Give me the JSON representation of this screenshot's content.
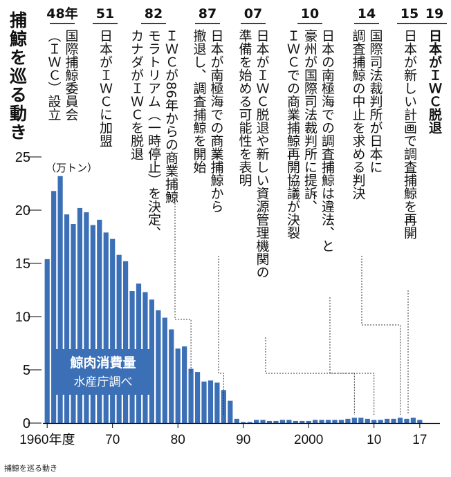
{
  "chart_data": {
    "type": "bar",
    "title": "捕鯨を巡る動き",
    "ylabel": "（万トン）",
    "ylim": [
      0,
      25
    ],
    "yticks": [
      "0",
      "5",
      "10",
      "15",
      "20",
      "25"
    ],
    "xticks": [
      {
        "year": 1960,
        "label": "1960年度"
      },
      {
        "year": 1970,
        "label": "70"
      },
      {
        "year": 1980,
        "label": "80"
      },
      {
        "year": 1990,
        "label": "90"
      },
      {
        "year": 2000,
        "label": "2000"
      },
      {
        "year": 2010,
        "label": "10"
      },
      {
        "year": 2017,
        "label": "17"
      }
    ],
    "legend_main": "鯨肉消費量",
    "legend_sub": "水産庁調べ",
    "accent_color": "#3b6fb6",
    "series": [
      {
        "x": [
          1960,
          1961,
          1962,
          1963,
          1964,
          1965,
          1966,
          1967,
          1968,
          1969,
          1970,
          1971,
          1972,
          1973,
          1974,
          1975,
          1976,
          1977,
          1978,
          1979,
          1980,
          1981,
          1982,
          1983,
          1984,
          1985,
          1986,
          1987,
          1988,
          1989,
          1990,
          1991,
          1992,
          1993,
          1994,
          1995,
          1996,
          1997,
          1998,
          1999,
          2000,
          2001,
          2002,
          2003,
          2004,
          2005,
          2006,
          2007,
          2008,
          2009,
          2010,
          2011,
          2012,
          2013,
          2014,
          2015,
          2016,
          2017
        ],
        "values": [
          15.4,
          21.8,
          23.2,
          19.6,
          18.7,
          20.2,
          19.8,
          18.6,
          19.1,
          17.9,
          17.3,
          15.8,
          15.2,
          12.4,
          13.1,
          12.3,
          11.6,
          10.6,
          9.9,
          8.8,
          7.0,
          7.2,
          5.1,
          4.8,
          3.9,
          4.0,
          3.8,
          3.1,
          2.1,
          0.4,
          0.1,
          0.1,
          0.3,
          0.3,
          0.2,
          0.2,
          0.3,
          0.3,
          0.2,
          0.2,
          0.2,
          0.3,
          0.3,
          0.3,
          0.3,
          0.3,
          0.4,
          0.5,
          0.5,
          0.4,
          0.3,
          0.3,
          0.4,
          0.4,
          0.5,
          0.4,
          0.5,
          0.3
        ]
      }
    ],
    "events": [
      {
        "year": "48年",
        "text": "国際捕鯨委員会（ＩＷＣ）設立"
      },
      {
        "year": "51",
        "text": "日本がＩＷＣに加盟"
      },
      {
        "year": "82",
        "text": "ＩＷＣが86年からの商業捕鯨モラトリアム（一時停止）を決定、カナダがＩＷＣを脱退"
      },
      {
        "year": "87",
        "text": "日本が南極海での商業捕鯨から撤退し、調査捕鯨を開始"
      },
      {
        "year": "07",
        "text": "日本がＩＷＣ脱退や新しい資源管理機関の準備を始める可能性を表明"
      },
      {
        "year": "10",
        "text": "日本の南極海での調査捕鯨は違法、と豪州が国際司法裁判所に提訴、ＩＷＣでの商業捕鯨再開協議が決裂"
      },
      {
        "year": "14",
        "text": "国際司法裁判所が日本に調査捕鯨の中止を求める判決"
      },
      {
        "year": "15",
        "text": "日本が新しい計画で調査捕鯨を再開"
      },
      {
        "year": "19",
        "text": "日本がＩＷＣ脱退"
      }
    ]
  },
  "caption": "捕鯨を巡る動き"
}
